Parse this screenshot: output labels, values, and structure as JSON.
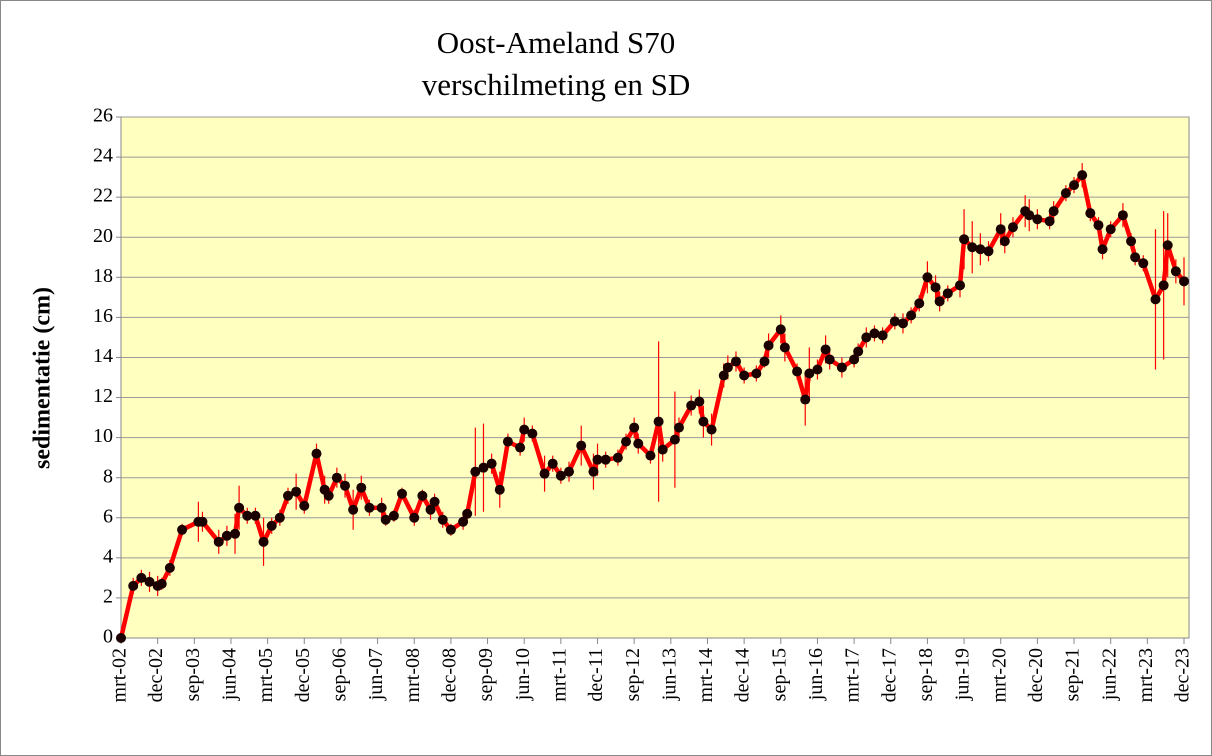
{
  "chart_data": {
    "type": "line",
    "title": "Oost-Ameland S70",
    "subtitle": "verschilmeting en SD",
    "ylabel": "sedimentatie (cm)",
    "color": "#ff0000",
    "marker_color": "#1a0000",
    "background": "#ffffc0",
    "grid": true,
    "ylim": [
      0,
      26
    ],
    "yticks": [
      0,
      2,
      4,
      6,
      8,
      10,
      12,
      14,
      16,
      18,
      20,
      22,
      24,
      26
    ],
    "xlim": [
      "2002-03",
      "2023-12"
    ],
    "xticks": [
      {
        "value": "2002-03",
        "label": "mrt-02"
      },
      {
        "value": "2002-12",
        "label": "dec-02"
      },
      {
        "value": "2003-09",
        "label": "sep-03"
      },
      {
        "value": "2004-06",
        "label": "jun-04"
      },
      {
        "value": "2005-03",
        "label": "mrt-05"
      },
      {
        "value": "2005-12",
        "label": "dec-05"
      },
      {
        "value": "2006-09",
        "label": "sep-06"
      },
      {
        "value": "2007-06",
        "label": "jun-07"
      },
      {
        "value": "2008-03",
        "label": "mrt-08"
      },
      {
        "value": "2008-12",
        "label": "dec-08"
      },
      {
        "value": "2009-09",
        "label": "sep-09"
      },
      {
        "value": "2010-06",
        "label": "jun-10"
      },
      {
        "value": "2011-03",
        "label": "mrt-11"
      },
      {
        "value": "2011-12",
        "label": "dec-11"
      },
      {
        "value": "2012-09",
        "label": "sep-12"
      },
      {
        "value": "2013-06",
        "label": "jun-13"
      },
      {
        "value": "2014-03",
        "label": "mrt-14"
      },
      {
        "value": "2014-12",
        "label": "dec-14"
      },
      {
        "value": "2015-09",
        "label": "sep-15"
      },
      {
        "value": "2016-06",
        "label": "jun-16"
      },
      {
        "value": "2017-03",
        "label": "mrt-17"
      },
      {
        "value": "2017-12",
        "label": "dec-17"
      },
      {
        "value": "2018-09",
        "label": "sep-18"
      },
      {
        "value": "2019-06",
        "label": "jun-19"
      },
      {
        "value": "2020-03",
        "label": "mrt-20"
      },
      {
        "value": "2020-12",
        "label": "dec-20"
      },
      {
        "value": "2021-09",
        "label": "sep-21"
      },
      {
        "value": "2022-06",
        "label": "jun-22"
      },
      {
        "value": "2023-03",
        "label": "mrt-23"
      },
      {
        "value": "2023-12",
        "label": "dec-23"
      }
    ],
    "x": [
      "2002-03",
      "2002-06",
      "2002-08",
      "2002-10",
      "2002-12",
      "2003-01",
      "2003-03",
      "2003-06",
      "2003-10",
      "2003-11",
      "2004-03",
      "2004-05",
      "2004-07",
      "2004-08",
      "2004-10",
      "2004-12",
      "2005-02",
      "2005-04",
      "2005-06",
      "2005-08",
      "2005-10",
      "2005-12",
      "2006-03",
      "2006-05",
      "2006-06",
      "2006-08",
      "2006-10",
      "2006-12",
      "2007-02",
      "2007-04",
      "2007-07",
      "2007-08",
      "2007-10",
      "2007-12",
      "2008-03",
      "2008-05",
      "2008-07",
      "2008-08",
      "2008-10",
      "2008-12",
      "2009-03",
      "2009-04",
      "2009-06",
      "2009-08",
      "2009-10",
      "2009-12",
      "2010-02",
      "2010-05",
      "2010-06",
      "2010-08",
      "2010-11",
      "2011-01",
      "2011-03",
      "2011-05",
      "2011-08",
      "2011-11",
      "2011-12",
      "2012-02",
      "2012-05",
      "2012-07",
      "2012-09",
      "2012-10",
      "2013-01",
      "2013-03",
      "2013-04",
      "2013-07",
      "2013-08",
      "2013-11",
      "2014-01",
      "2014-02",
      "2014-04",
      "2014-07",
      "2014-08",
      "2014-10",
      "2014-12",
      "2015-03",
      "2015-05",
      "2015-06",
      "2015-09",
      "2015-10",
      "2016-01",
      "2016-03",
      "2016-04",
      "2016-06",
      "2016-08",
      "2016-09",
      "2016-12",
      "2017-03",
      "2017-04",
      "2017-06",
      "2017-08",
      "2017-10",
      "2018-01",
      "2018-03",
      "2018-05",
      "2018-07",
      "2018-09",
      "2018-11",
      "2018-12",
      "2019-02",
      "2019-05",
      "2019-06",
      "2019-08",
      "2019-10",
      "2019-12",
      "2020-03",
      "2020-04",
      "2020-06",
      "2020-09",
      "2020-10",
      "2020-12",
      "2021-03",
      "2021-04",
      "2021-07",
      "2021-09",
      "2021-11",
      "2022-01",
      "2022-03",
      "2022-04",
      "2022-06",
      "2022-09",
      "2022-11",
      "2022-12",
      "2023-02",
      "2023-05",
      "2023-07",
      "2023-08",
      "2023-10",
      "2023-12"
    ],
    "values": [
      0,
      2.6,
      3.0,
      2.8,
      2.6,
      2.7,
      3.5,
      5.4,
      5.8,
      5.8,
      4.8,
      5.1,
      5.2,
      6.5,
      6.1,
      6.1,
      4.8,
      5.6,
      6.0,
      7.1,
      7.3,
      6.6,
      9.2,
      7.4,
      7.1,
      8.0,
      7.6,
      6.4,
      7.5,
      6.5,
      6.5,
      5.9,
      6.1,
      7.2,
      6.0,
      7.1,
      6.4,
      6.8,
      5.9,
      5.4,
      5.8,
      6.2,
      8.3,
      8.5,
      8.7,
      7.4,
      9.8,
      9.5,
      10.4,
      10.2,
      8.2,
      8.7,
      8.1,
      8.3,
      9.6,
      8.3,
      8.9,
      8.9,
      9.0,
      9.8,
      10.5,
      9.7,
      9.1,
      10.8,
      9.4,
      9.9,
      10.5,
      11.6,
      11.8,
      10.8,
      10.4,
      13.1,
      13.5,
      13.8,
      13.1,
      13.2,
      13.8,
      14.6,
      15.4,
      14.5,
      13.3,
      11.9,
      13.2,
      13.4,
      14.4,
      13.9,
      13.5,
      13.9,
      14.3,
      15.0,
      15.2,
      15.1,
      15.8,
      15.7,
      16.1,
      16.7,
      18.0,
      17.5,
      16.8,
      17.2,
      17.6,
      19.9,
      19.5,
      19.4,
      19.3,
      20.4,
      19.8,
      20.5,
      21.3,
      21.1,
      20.9,
      20.8,
      21.3,
      22.2,
      22.6,
      23.1,
      21.2,
      20.6,
      19.4,
      20.4,
      21.1,
      19.8,
      19.0,
      18.7,
      16.9,
      17.6,
      19.6,
      18.3,
      17.8
    ],
    "errors": [
      0,
      0.4,
      0.4,
      0.5,
      0.5,
      0.3,
      0.4,
      0.3,
      1.0,
      0.5,
      0.6,
      0.5,
      1.0,
      1.1,
      0.4,
      0.4,
      1.2,
      0.4,
      0.4,
      0.4,
      0.9,
      0.4,
      0.5,
      0.7,
      0.4,
      0.5,
      0.6,
      1.0,
      0.6,
      0.4,
      0.5,
      0.3,
      0.3,
      0.3,
      0.4,
      0.3,
      0.5,
      0.4,
      0.4,
      0.3,
      0.4,
      0.3,
      2.2,
      2.2,
      0.5,
      0.9,
      0.4,
      0.4,
      0.6,
      0.4,
      0.9,
      0.4,
      0.4,
      0.5,
      1.0,
      0.9,
      0.8,
      0.4,
      0.4,
      0.4,
      0.5,
      0.5,
      0.4,
      4.0,
      0.6,
      2.4,
      0.5,
      0.5,
      0.6,
      0.8,
      0.8,
      0.6,
      0.6,
      0.5,
      0.4,
      0.4,
      0.3,
      0.6,
      0.7,
      0.7,
      0.4,
      1.3,
      1.3,
      0.5,
      0.7,
      0.5,
      0.5,
      0.4,
      0.4,
      0.5,
      0.4,
      0.4,
      0.4,
      0.5,
      0.4,
      0.4,
      0.8,
      0.6,
      0.5,
      0.4,
      0.6,
      1.5,
      1.3,
      0.8,
      0.5,
      0.8,
      0.6,
      0.5,
      0.8,
      0.8,
      0.5,
      0.4,
      0.5,
      0.4,
      0.4,
      0.6,
      0.4,
      0.4,
      0.5,
      0.4,
      0.6,
      0.4,
      0.4,
      0.4,
      3.5,
      3.7,
      1.6,
      0.6,
      1.2
    ]
  }
}
